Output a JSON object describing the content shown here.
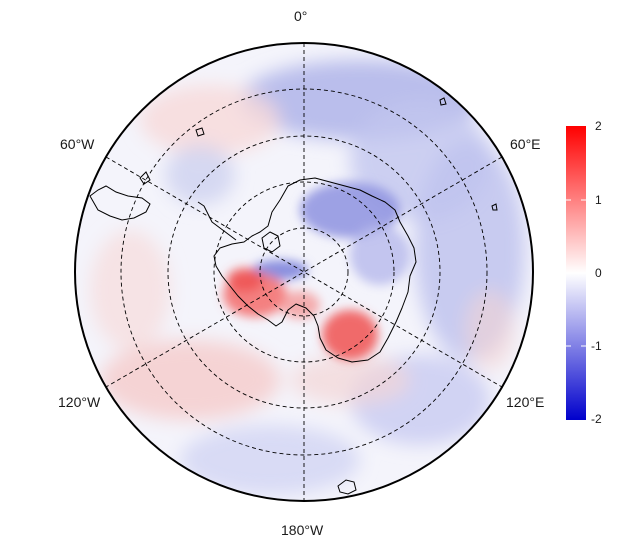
{
  "map": {
    "projection": "south-polar-stereographic",
    "longitude_labels": {
      "top": "0°",
      "upper_left": "60°W",
      "upper_right": "60°E",
      "lower_left": "120°W",
      "lower_right": "120°E",
      "bottom": "180°W"
    },
    "graticule_style": "dashed",
    "coastline_color": "#000000"
  },
  "colorbar": {
    "min": -2,
    "max": 2,
    "ticks": [
      "2",
      "1",
      "0",
      "-1",
      "-2"
    ],
    "colors": {
      "low": "#0000cc",
      "mid": "#ffffff",
      "high": "#ff0000"
    }
  }
}
